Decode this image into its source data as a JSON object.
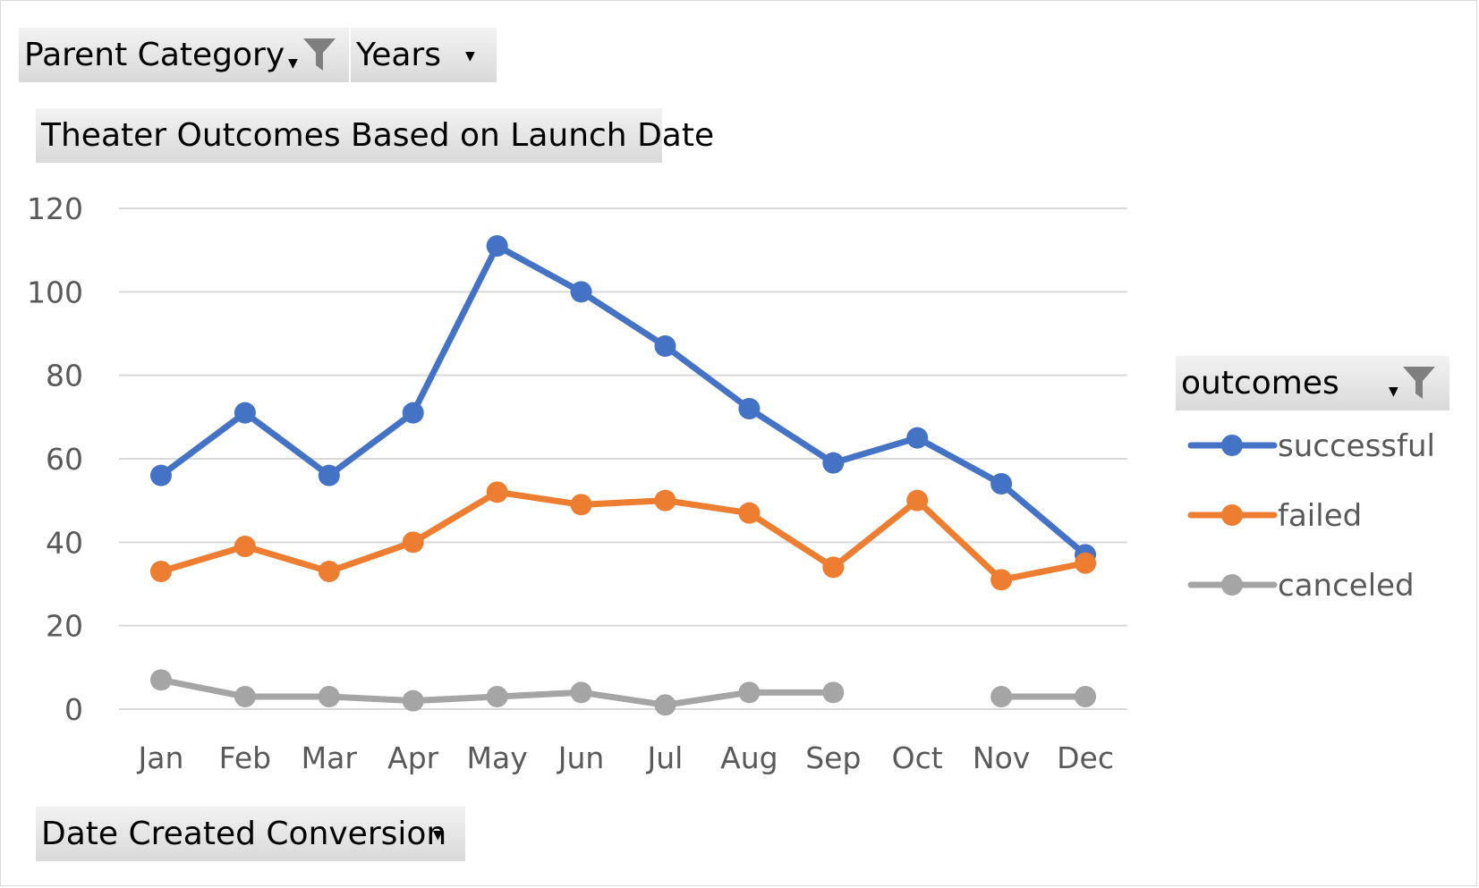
{
  "filters": {
    "parent_category": "Parent Category",
    "years": "Years",
    "outcomes": "outcomes",
    "date_created": "Date Created Conversion"
  },
  "chart_data": {
    "type": "line",
    "title": "Theater Outcomes Based on Launch Date",
    "xlabel": "",
    "ylabel": "",
    "categories": [
      "Jan",
      "Feb",
      "Mar",
      "Apr",
      "May",
      "Jun",
      "Jul",
      "Aug",
      "Sep",
      "Oct",
      "Nov",
      "Dec"
    ],
    "ylim": [
      0,
      120
    ],
    "yticks": [
      0,
      20,
      40,
      60,
      80,
      100,
      120
    ],
    "grid": true,
    "legend_position": "right",
    "series": [
      {
        "name": "successful",
        "color": "#4472C4",
        "values": [
          56,
          71,
          56,
          71,
          111,
          100,
          87,
          72,
          59,
          65,
          54,
          37
        ]
      },
      {
        "name": "failed",
        "color": "#ED7D31",
        "values": [
          33,
          39,
          33,
          40,
          52,
          49,
          50,
          47,
          34,
          50,
          31,
          35
        ]
      },
      {
        "name": "canceled",
        "color": "#A5A5A5",
        "values": [
          7,
          3,
          3,
          2,
          3,
          4,
          1,
          4,
          4,
          null,
          3,
          3
        ]
      }
    ]
  }
}
